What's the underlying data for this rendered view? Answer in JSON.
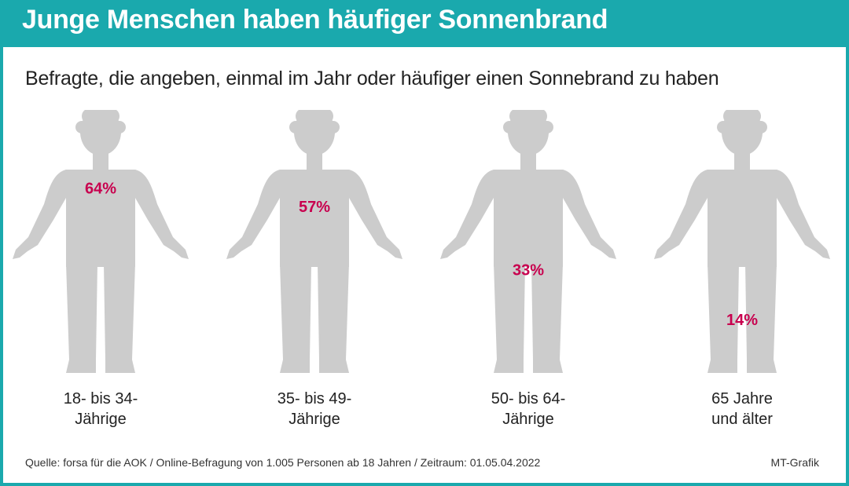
{
  "header": {
    "title": "Junge Menschen haben häufiger Sonnenbrand"
  },
  "subtitle": "Befragte, die angeben, einmal im Jahr oder häufiger einen Sonnebrand zu haben",
  "colors": {
    "accent": "#1aa9ad",
    "fill": "#c8004e",
    "body": "#cccccc"
  },
  "chart_data": {
    "type": "bar",
    "categories": [
      {
        "line1": "18- bis 34-",
        "line2": "Jährige"
      },
      {
        "line1": "35- bis 49-",
        "line2": "Jährige"
      },
      {
        "line1": "50- bis 64-",
        "line2": "Jährige"
      },
      {
        "line1": "65 Jahre",
        "line2": "und älter"
      }
    ],
    "values": [
      64,
      57,
      33,
      14
    ],
    "value_labels": [
      "64%",
      "57%",
      "33%",
      "14%"
    ],
    "ylim": [
      0,
      100
    ]
  },
  "footer": {
    "source": "Quelle: forsa für die AOK / Online-Befragung von 1.005 Personen ab 18 Jahren / Zeitraum: 01.05.04.2022",
    "credit": "MT-Grafik"
  }
}
